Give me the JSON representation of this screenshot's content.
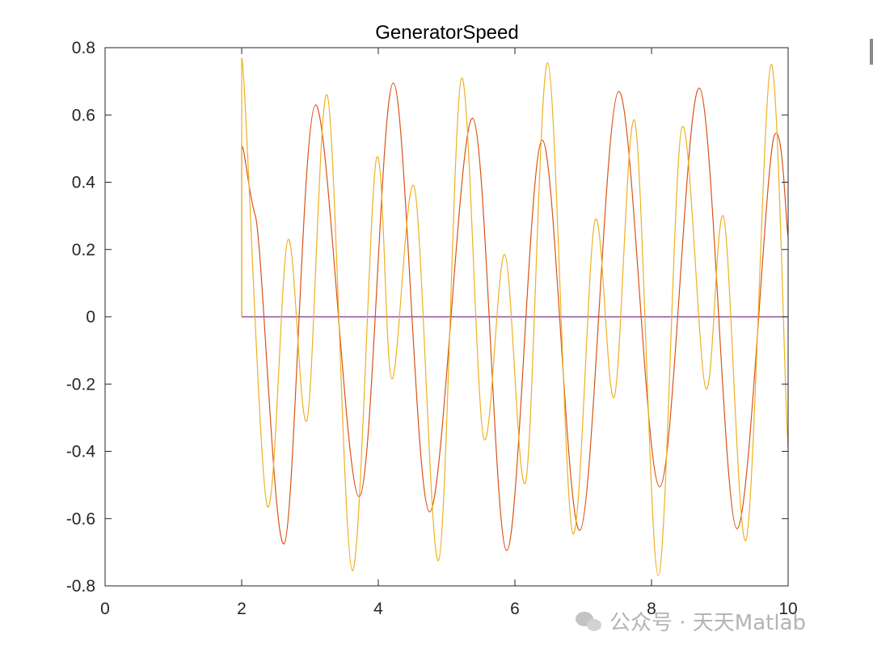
{
  "chart_data": {
    "type": "line",
    "title": "GeneratorSpeed",
    "xlabel": "",
    "ylabel": "",
    "xlim": [
      0,
      10
    ],
    "ylim": [
      -0.8,
      0.8
    ],
    "x_ticks": [
      0,
      2,
      4,
      6,
      8,
      10
    ],
    "y_ticks": [
      -0.8,
      -0.6,
      -0.4,
      -0.2,
      0,
      0.2,
      0.4,
      0.6,
      0.8
    ],
    "x_tick_labels": [
      "0",
      "2",
      "4",
      "6",
      "8",
      "10"
    ],
    "y_tick_labels": [
      "-0.8",
      "-0.6",
      "-0.4",
      "-0.2",
      "0",
      "0.2",
      "0.4",
      "0.6",
      "0.8"
    ],
    "grid": false,
    "series": [
      {
        "color": "#7e2f8e",
        "points": [
          [
            2.0,
            0.0
          ],
          [
            10.0,
            0.0
          ]
        ]
      },
      {
        "color": "#d95319",
        "points": [
          [
            2.0,
            0.0
          ],
          [
            2.0,
            0.505
          ],
          [
            2.2,
            0.3
          ],
          [
            2.62,
            -0.675
          ],
          [
            3.08,
            0.63
          ],
          [
            3.72,
            -0.535
          ],
          [
            4.22,
            0.695
          ],
          [
            4.75,
            -0.58
          ],
          [
            5.38,
            0.59
          ],
          [
            5.88,
            -0.695
          ],
          [
            6.4,
            0.525
          ],
          [
            6.95,
            -0.635
          ],
          [
            7.52,
            0.67
          ],
          [
            8.12,
            -0.505
          ],
          [
            8.7,
            0.68
          ],
          [
            9.25,
            -0.63
          ],
          [
            9.8,
            0.54
          ],
          [
            10.0,
            0.24
          ]
        ]
      },
      {
        "color": "#edb120",
        "points": [
          [
            2.0,
            0.0
          ],
          [
            2.0,
            0.77
          ],
          [
            2.38,
            -0.565
          ],
          [
            2.68,
            0.23
          ],
          [
            2.95,
            -0.31
          ],
          [
            3.25,
            0.66
          ],
          [
            3.62,
            -0.755
          ],
          [
            3.98,
            0.475
          ],
          [
            4.2,
            -0.185
          ],
          [
            4.52,
            0.39
          ],
          [
            4.88,
            -0.725
          ],
          [
            5.22,
            0.71
          ],
          [
            5.55,
            -0.365
          ],
          [
            5.85,
            0.185
          ],
          [
            6.15,
            -0.495
          ],
          [
            6.48,
            0.755
          ],
          [
            6.85,
            -0.645
          ],
          [
            7.18,
            0.29
          ],
          [
            7.45,
            -0.24
          ],
          [
            7.75,
            0.585
          ],
          [
            8.1,
            -0.77
          ],
          [
            8.45,
            0.565
          ],
          [
            8.8,
            -0.215
          ],
          [
            9.05,
            0.3
          ],
          [
            9.38,
            -0.665
          ],
          [
            9.75,
            0.75
          ],
          [
            10.0,
            -0.39
          ]
        ]
      }
    ]
  },
  "watermark": {
    "icon": "wechat-icon",
    "text": "公众号 · 天天Matlab"
  }
}
